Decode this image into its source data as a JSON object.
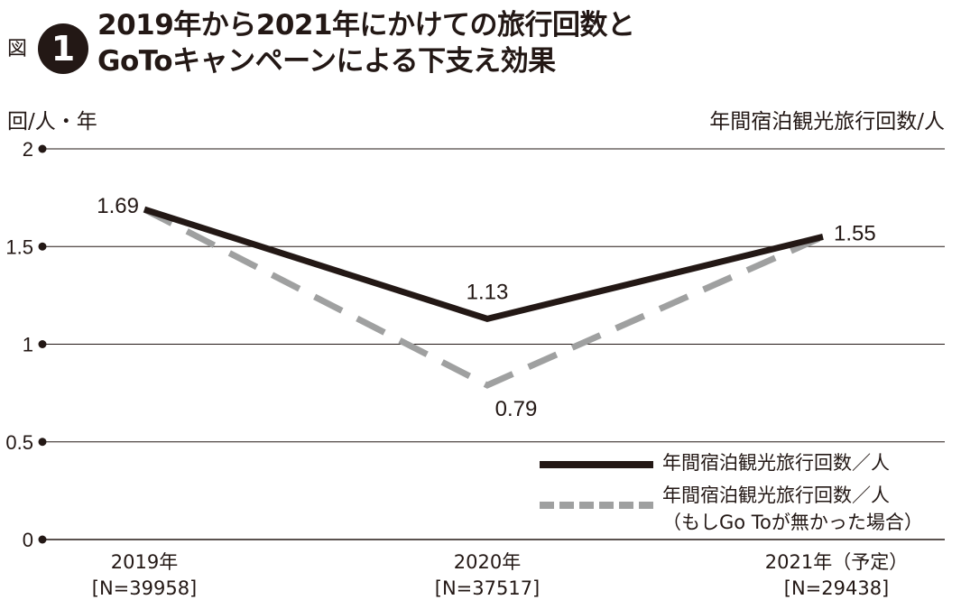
{
  "figure": {
    "label": "図",
    "number": "1",
    "title_line1": "2019年から2021年にかけての旅行回数と",
    "title_line2": "GoToキャンペーンによる下支え効果"
  },
  "units": {
    "left": "回/人・年",
    "right": "年間宿泊観光旅行回数/人"
  },
  "chart_data": {
    "type": "line",
    "title": "2019年から2021年にかけての旅行回数とGoToキャンペーンによる下支え効果",
    "ylabel": "回/人・年",
    "categories": [
      "2019年",
      "2020年",
      "2021年（予定）"
    ],
    "category_samples": [
      "[N=39958]",
      "[N=37517]",
      "[N=29438]"
    ],
    "y_ticks": [
      "0",
      "0.5",
      "1",
      "1.5",
      "2"
    ],
    "ylim": [
      0,
      2
    ],
    "grid": true,
    "legend_position": "bottom-right",
    "series": [
      {
        "name": "年間宿泊観光旅行回数／人",
        "values": [
          1.69,
          1.13,
          1.55
        ],
        "labels": [
          "1.69",
          "1.13",
          "1.55"
        ],
        "color": "#231815",
        "style": "solid"
      },
      {
        "name": "年間宿泊観光旅行回数／人（もしGo Toが無かった場合）",
        "legend_line1": "年間宿泊観光旅行回数／人",
        "legend_line2": "（もしGo Toが無かった場合）",
        "values": [
          1.69,
          0.79,
          1.55
        ],
        "labels": [
          null,
          "0.79",
          null
        ],
        "color": "#9fa0a0",
        "style": "dashed"
      }
    ]
  }
}
